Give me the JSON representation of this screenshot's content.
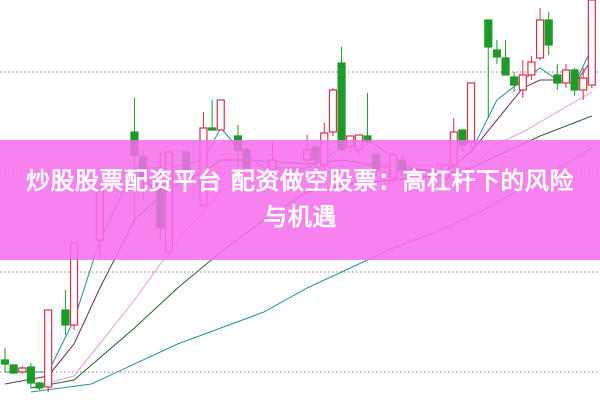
{
  "banner": {
    "title": "炒股股票配资平台 配资做空股票：高杠杆下的风险与机遇",
    "color": "#f66eec"
  },
  "chart_data": {
    "type": "candlestick",
    "title": "",
    "xlabel": "",
    "ylabel": "",
    "grid": "horizontal dotted",
    "ylim": [
      0,
      100
    ],
    "xlim": [
      0,
      68
    ],
    "colors": {
      "up": "#d9304a",
      "down": "#1e9a2a",
      "ma5": "#2b8f8f",
      "ma10": "#6b2f5f",
      "ma20": "#e79be0",
      "ma30": "#2f5f2f",
      "ma60": "#2b8fa0"
    },
    "candles": [
      {
        "i": 0,
        "o": 10,
        "c": 9,
        "h": 13,
        "l": 7
      },
      {
        "i": 1,
        "o": 8.75,
        "c": 6.75,
        "h": 9,
        "l": 6.5
      },
      {
        "i": 2,
        "o": 7,
        "c": 8,
        "h": 8.5,
        "l": 6.5
      },
      {
        "i": 3,
        "o": 8.25,
        "c": 4.25,
        "h": 9.25,
        "l": 3
      },
      {
        "i": 4,
        "o": 4.25,
        "c": 3,
        "h": 4.5,
        "l": 2.5
      },
      {
        "i": 5,
        "o": 3.25,
        "c": 22.5,
        "h": 22.5,
        "l": 2
      },
      {
        "i": 7,
        "o": 22.5,
        "c": 18.75,
        "h": 27.5,
        "l": 16.25
      },
      {
        "i": 8,
        "o": 18.75,
        "c": 39.25,
        "h": 39.25,
        "l": 17.5
      },
      {
        "i": 11,
        "o": 40,
        "c": 53,
        "h": 53,
        "l": 35.5
      },
      {
        "i": 15,
        "o": 67,
        "c": 61.25,
        "h": 75.5,
        "l": 43.75
      },
      {
        "i": 16,
        "o": 60.75,
        "c": 55.5,
        "h": 62.5,
        "l": 50
      },
      {
        "i": 17,
        "o": 53.75,
        "c": 55,
        "h": 56,
        "l": 53
      },
      {
        "i": 18,
        "o": 53.75,
        "c": 43,
        "h": 62,
        "l": 40
      },
      {
        "i": 19,
        "o": 37,
        "c": 62,
        "h": 62,
        "l": 36
      },
      {
        "i": 21,
        "o": 62,
        "c": 57.5,
        "h": 62,
        "l": 55
      },
      {
        "i": 23,
        "o": 48.75,
        "c": 68,
        "h": 72,
        "l": 48.25
      },
      {
        "i": 24,
        "o": 68,
        "c": 67.5,
        "h": 75,
        "l": 67.5
      },
      {
        "i": 25,
        "o": 67.5,
        "c": 75,
        "h": 75,
        "l": 67.5
      },
      {
        "i": 27,
        "o": 66,
        "c": 62.5,
        "h": 68.75,
        "l": 58
      },
      {
        "i": 28,
        "o": 62.5,
        "c": 57.5,
        "h": 63,
        "l": 57
      },
      {
        "i": 31,
        "o": 57.5,
        "c": 60,
        "h": 64.25,
        "l": 55.5
      },
      {
        "i": 35,
        "o": 60,
        "c": 62.5,
        "h": 66.25,
        "l": 58.75
      },
      {
        "i": 36,
        "o": 63.25,
        "c": 60,
        "h": 64,
        "l": 58
      },
      {
        "i": 37,
        "o": 58.75,
        "c": 66.75,
        "h": 69.25,
        "l": 57.5
      },
      {
        "i": 38,
        "o": 67,
        "c": 77.5,
        "h": 78,
        "l": 66
      },
      {
        "i": 39,
        "o": 84.25,
        "c": 62.5,
        "h": 88.25,
        "l": 62.5
      },
      {
        "i": 40,
        "o": 63.25,
        "c": 66,
        "h": 66,
        "l": 62
      },
      {
        "i": 41,
        "o": 62.5,
        "c": 66.25,
        "h": 66.25,
        "l": 61
      },
      {
        "i": 42,
        "o": 66,
        "c": 64.5,
        "h": 76.75,
        "l": 63.75
      },
      {
        "i": 43,
        "o": 61.25,
        "c": 57.5,
        "h": 62,
        "l": 56
      },
      {
        "i": 45,
        "o": 55.5,
        "c": 61.25,
        "h": 62,
        "l": 54.5
      },
      {
        "i": 46,
        "o": 60,
        "c": 57.5,
        "h": 61,
        "l": 56
      },
      {
        "i": 47,
        "o": 57,
        "c": 56.25,
        "h": 57,
        "l": 52
      },
      {
        "i": 51,
        "o": 55.5,
        "c": 58.75,
        "h": 59,
        "l": 55
      },
      {
        "i": 52,
        "o": 58.75,
        "c": 67,
        "h": 70.5,
        "l": 58
      },
      {
        "i": 53,
        "o": 67.5,
        "c": 63.75,
        "h": 67.5,
        "l": 62
      },
      {
        "i": 54,
        "o": 64.5,
        "c": 79.25,
        "h": 79.25,
        "l": 63
      },
      {
        "i": 56,
        "o": 95,
        "c": 88.25,
        "h": 95,
        "l": 70.5
      },
      {
        "i": 57,
        "o": 87.5,
        "c": 85.75,
        "h": 90,
        "l": 84
      },
      {
        "i": 58,
        "o": 85.5,
        "c": 81.25,
        "h": 90,
        "l": 81.25
      },
      {
        "i": 59,
        "o": 80.75,
        "c": 78.75,
        "h": 82,
        "l": 77
      },
      {
        "i": 60,
        "o": 77.5,
        "c": 81.25,
        "h": 85,
        "l": 75.5
      },
      {
        "i": 61,
        "o": 81.25,
        "c": 84.5,
        "h": 86,
        "l": 80
      },
      {
        "i": 62,
        "o": 85.5,
        "c": 95,
        "h": 98,
        "l": 85
      },
      {
        "i": 63,
        "o": 95,
        "c": 88.75,
        "h": 97,
        "l": 86.25
      },
      {
        "i": 64,
        "o": 81.25,
        "c": 79.25,
        "h": 84,
        "l": 77.5
      },
      {
        "i": 65,
        "o": 79.25,
        "c": 82.5,
        "h": 84,
        "l": 78
      },
      {
        "i": 66,
        "o": 82.5,
        "c": 77.5,
        "h": 83,
        "l": 76
      },
      {
        "i": 67,
        "o": 77.5,
        "c": 80.5,
        "h": 83,
        "l": 75
      },
      {
        "i": 68,
        "o": 78.75,
        "c": 100,
        "h": 100,
        "l": 78
      }
    ],
    "moving_averages": [
      {
        "key": "ma5",
        "points": [
          [
            0,
            7
          ],
          [
            5,
            7
          ],
          [
            8,
            20
          ],
          [
            11,
            40
          ],
          [
            15,
            58
          ],
          [
            19,
            58
          ],
          [
            23,
            60
          ],
          [
            25,
            68
          ],
          [
            27,
            63
          ],
          [
            30,
            58
          ],
          [
            35,
            58
          ],
          [
            39,
            63
          ],
          [
            42,
            65
          ],
          [
            47,
            58
          ],
          [
            51,
            57
          ],
          [
            54,
            62
          ],
          [
            57,
            75
          ],
          [
            60,
            80
          ],
          [
            62,
            83
          ],
          [
            64,
            80
          ],
          [
            66,
            79
          ],
          [
            68,
            88
          ]
        ]
      },
      {
        "key": "ma10",
        "points": [
          [
            0,
            4
          ],
          [
            5,
            6
          ],
          [
            8,
            14
          ],
          [
            11,
            28
          ],
          [
            15,
            45
          ],
          [
            19,
            53
          ],
          [
            23,
            57
          ],
          [
            25,
            60
          ],
          [
            28,
            60
          ],
          [
            35,
            59
          ],
          [
            39,
            60
          ],
          [
            45,
            58
          ],
          [
            51,
            57
          ],
          [
            54,
            62
          ],
          [
            57,
            70
          ],
          [
            60,
            78
          ],
          [
            62,
            80
          ],
          [
            64,
            80
          ],
          [
            66,
            79
          ],
          [
            68,
            85
          ]
        ]
      },
      {
        "key": "ma20",
        "points": [
          [
            3,
            3
          ],
          [
            8,
            6
          ],
          [
            15,
            25
          ],
          [
            20,
            40
          ],
          [
            25,
            52
          ],
          [
            28,
            55
          ],
          [
            35,
            58
          ],
          [
            45,
            59
          ],
          [
            54,
            58
          ],
          [
            57,
            64
          ],
          [
            60,
            67
          ],
          [
            64,
            72
          ],
          [
            68,
            77
          ]
        ]
      },
      {
        "key": "ma30",
        "points": [
          [
            3,
            3
          ],
          [
            8,
            5
          ],
          [
            15,
            18
          ],
          [
            20,
            28
          ],
          [
            25,
            37
          ],
          [
            30,
            45
          ],
          [
            35,
            52
          ],
          [
            40,
            54
          ],
          [
            50,
            56
          ],
          [
            54,
            58
          ],
          [
            58,
            62
          ],
          [
            62,
            66
          ],
          [
            68,
            71
          ]
        ]
      },
      {
        "key": "ma60",
        "points": [
          [
            3,
            2
          ],
          [
            10,
            4
          ],
          [
            20,
            14
          ],
          [
            30,
            22
          ],
          [
            35,
            28
          ],
          [
            40,
            33
          ],
          [
            45,
            38
          ],
          [
            50,
            42
          ],
          [
            55,
            47
          ],
          [
            60,
            53
          ],
          [
            65,
            59
          ],
          [
            68,
            63
          ]
        ]
      }
    ],
    "gridlines": [
      82,
      57,
      32,
      7
    ]
  }
}
